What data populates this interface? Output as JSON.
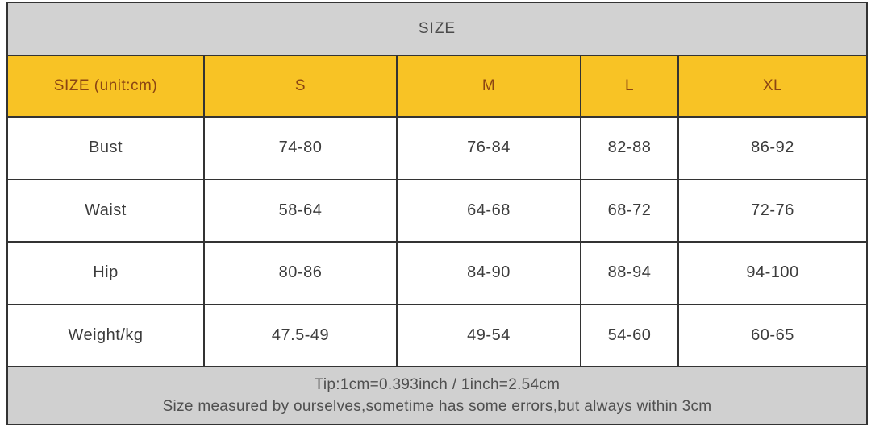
{
  "title": "SIZE",
  "chart_data": {
    "type": "table",
    "title": "SIZE",
    "columns": [
      "SIZE (unit:cm)",
      "S",
      "M",
      "L",
      "XL"
    ],
    "rows": [
      [
        "Bust",
        "74-80",
        "76-84",
        "82-88",
        "86-92"
      ],
      [
        "Waist",
        "58-64",
        "64-68",
        "68-72",
        "72-76"
      ],
      [
        "Hip",
        "80-86",
        "84-90",
        "88-94",
        "94-100"
      ],
      [
        "Weight/kg",
        "47.5-49",
        "49-54",
        "54-60",
        "60-65"
      ]
    ],
    "notes": [
      "Tip:1cm=0.393inch / 1inch=2.54cm",
      "Size measured by ourselves,sometime has some errors,but always within 3cm"
    ]
  },
  "colors": {
    "header_bg": "#f8c325",
    "header_text": "#8b4513",
    "band_bg": "#d2d2d2",
    "footer_bg": "#d0d0d0",
    "border": "#333333",
    "body_text": "#3c3c3c"
  }
}
